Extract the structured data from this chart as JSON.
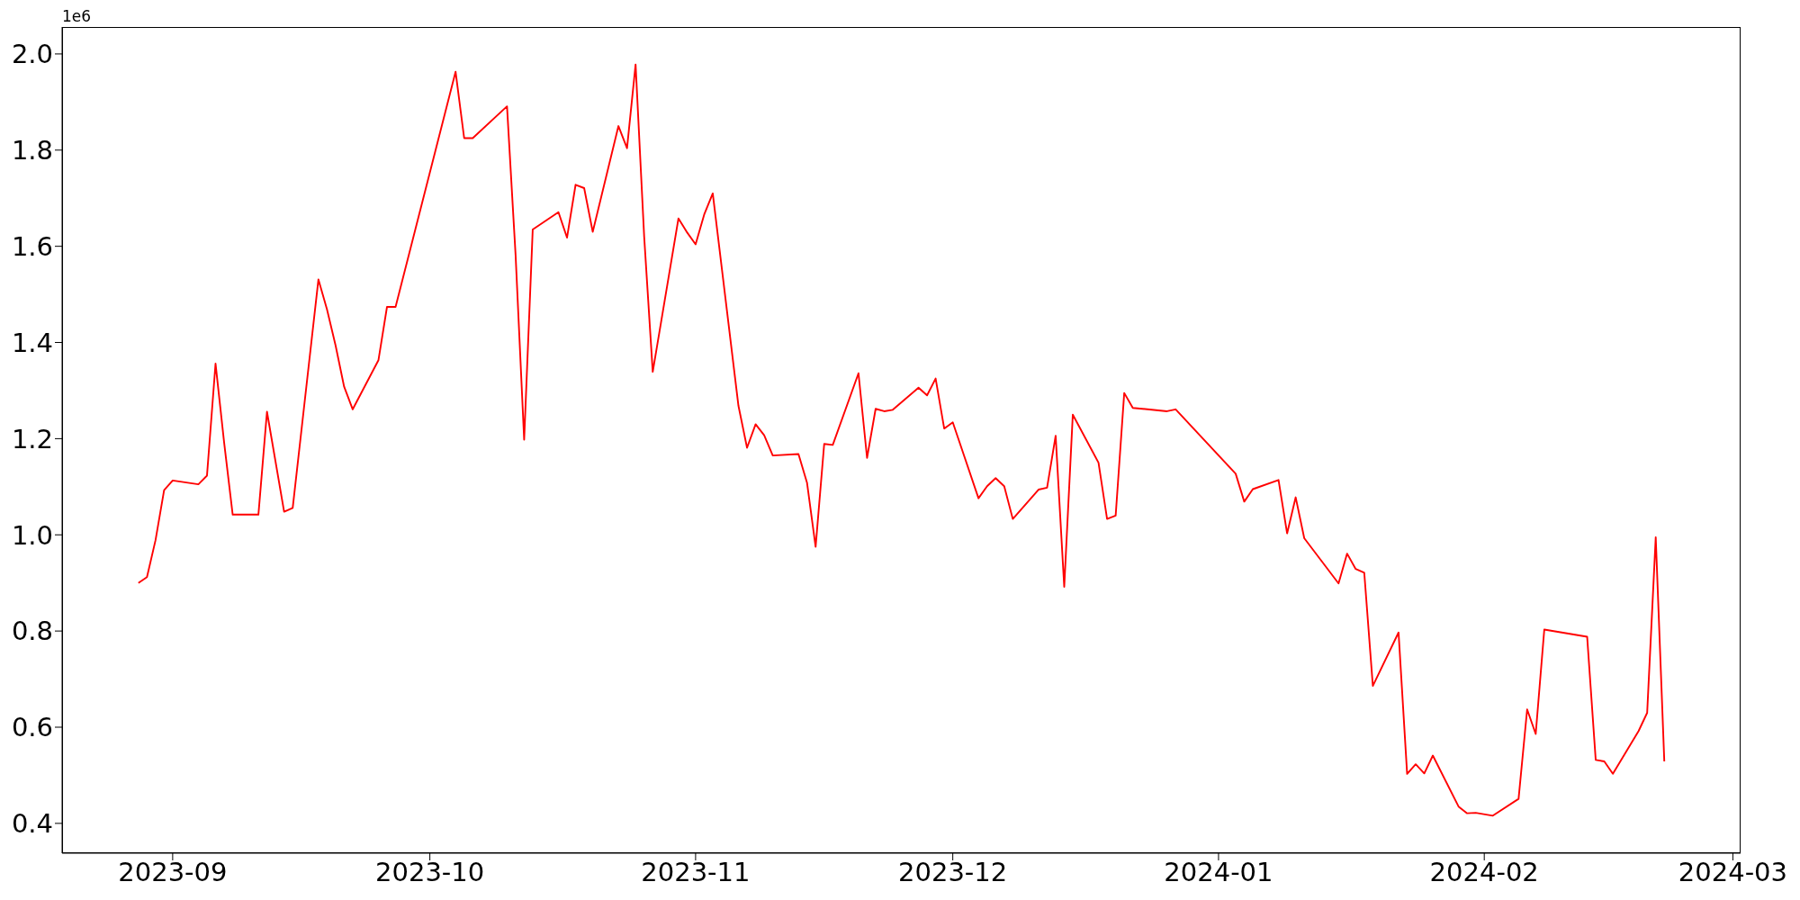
{
  "chart_data": {
    "type": "line",
    "color": "#ff0000",
    "annotations": [
      "1e6"
    ],
    "xlim": [
      "2023-08-19T02:24",
      "2024-03-01T21:36"
    ],
    "xticks": [
      "2023-09",
      "2023-10",
      "2023-11",
      "2023-12",
      "2024-01",
      "2024-02",
      "2024-03"
    ],
    "ylim": [
      0.338,
      2.056
    ],
    "yticks": [
      0.4,
      0.6,
      0.8,
      {
        "value": 1,
        "label": "1.0"
      },
      1.2,
      1.4,
      1.6,
      1.8,
      {
        "value": 2,
        "label": "2.0"
      }
    ],
    "x": [
      "2023-08-28",
      "2023-08-29",
      "2023-08-30",
      "2023-08-31",
      "2023-09-01",
      "2023-09-04",
      "2023-09-05",
      "2023-09-06",
      "2023-09-07",
      "2023-09-08",
      "2023-09-11",
      "2023-09-12",
      "2023-09-14",
      "2023-09-15",
      "2023-09-18",
      "2023-09-19",
      "2023-09-20",
      "2023-09-21",
      "2023-09-22",
      "2023-09-25",
      "2023-09-26",
      "2023-09-27",
      "2023-10-04",
      "2023-10-05",
      "2023-10-06",
      "2023-10-10",
      "2023-10-11",
      "2023-10-12",
      "2023-10-13",
      "2023-10-16",
      "2023-10-17",
      "2023-10-18",
      "2023-10-19",
      "2023-10-20",
      "2023-10-23",
      "2023-10-24",
      "2023-10-25",
      "2023-10-26",
      "2023-10-27",
      "2023-10-30",
      "2023-10-31",
      "2023-11-01",
      "2023-11-02",
      "2023-11-03",
      "2023-11-06",
      "2023-11-07",
      "2023-11-08",
      "2023-11-09",
      "2023-11-10",
      "2023-11-13",
      "2023-11-14",
      "2023-11-15",
      "2023-11-16",
      "2023-11-17",
      "2023-11-20",
      "2023-11-21",
      "2023-11-22",
      "2023-11-23",
      "2023-11-24",
      "2023-11-27",
      "2023-11-28",
      "2023-11-29",
      "2023-11-30",
      "2023-12-01",
      "2023-12-04",
      "2023-12-05",
      "2023-12-06",
      "2023-12-07",
      "2023-12-08",
      "2023-12-11",
      "2023-12-12",
      "2023-12-13",
      "2023-12-14",
      "2023-12-15",
      "2023-12-18",
      "2023-12-19",
      "2023-12-20",
      "2023-12-21",
      "2023-12-22",
      "2023-12-26",
      "2023-12-27",
      "2024-01-03",
      "2024-01-04",
      "2024-01-05",
      "2024-01-08",
      "2024-01-09",
      "2024-01-10",
      "2024-01-11",
      "2024-01-15",
      "2024-01-16",
      "2024-01-17",
      "2024-01-18",
      "2024-01-19",
      "2024-01-22",
      "2024-01-23",
      "2024-01-24",
      "2024-01-25",
      "2024-01-26",
      "2024-01-29",
      "2024-01-30",
      "2024-01-31",
      "2024-02-02",
      "2024-02-05",
      "2024-02-06",
      "2024-02-07",
      "2024-02-08",
      "2024-02-13",
      "2024-02-14",
      "2024-02-15",
      "2024-02-16",
      "2024-02-19",
      "2024-02-20",
      "2024-02-21",
      "2024-02-22"
    ],
    "values": [
      0.9,
      0.912,
      0.989,
      1.093,
      1.113,
      1.105,
      1.123,
      1.356,
      1.192,
      1.042,
      1.042,
      1.256,
      1.048,
      1.056,
      1.531,
      1.469,
      1.394,
      1.308,
      1.261,
      1.363,
      1.474,
      1.474,
      1.963,
      1.825,
      1.825,
      1.891,
      1.582,
      1.198,
      1.635,
      1.671,
      1.618,
      1.728,
      1.721,
      1.63,
      1.85,
      1.804,
      1.978,
      1.62,
      1.339,
      1.658,
      1.629,
      1.604,
      1.666,
      1.71,
      1.268,
      1.181,
      1.23,
      1.207,
      1.165,
      1.168,
      1.108,
      0.975,
      1.189,
      1.187,
      1.336,
      1.16,
      1.262,
      1.257,
      1.26,
      1.306,
      1.29,
      1.325,
      1.221,
      1.234,
      1.076,
      1.101,
      1.118,
      1.101,
      1.033,
      1.094,
      1.098,
      1.206,
      0.892,
      1.25,
      1.15,
      1.033,
      1.04,
      1.295,
      1.264,
      1.257,
      1.261,
      1.127,
      1.069,
      1.095,
      1.114,
      1.003,
      1.078,
      0.993,
      0.899,
      0.961,
      0.929,
      0.921,
      0.686,
      0.797,
      0.503,
      0.523,
      0.504,
      0.541,
      0.435,
      0.421,
      0.422,
      0.416,
      0.451,
      0.637,
      0.586,
      0.803,
      0.788,
      0.532,
      0.529,
      0.503,
      0.592,
      0.63,
      0.995,
      0.529
    ]
  }
}
